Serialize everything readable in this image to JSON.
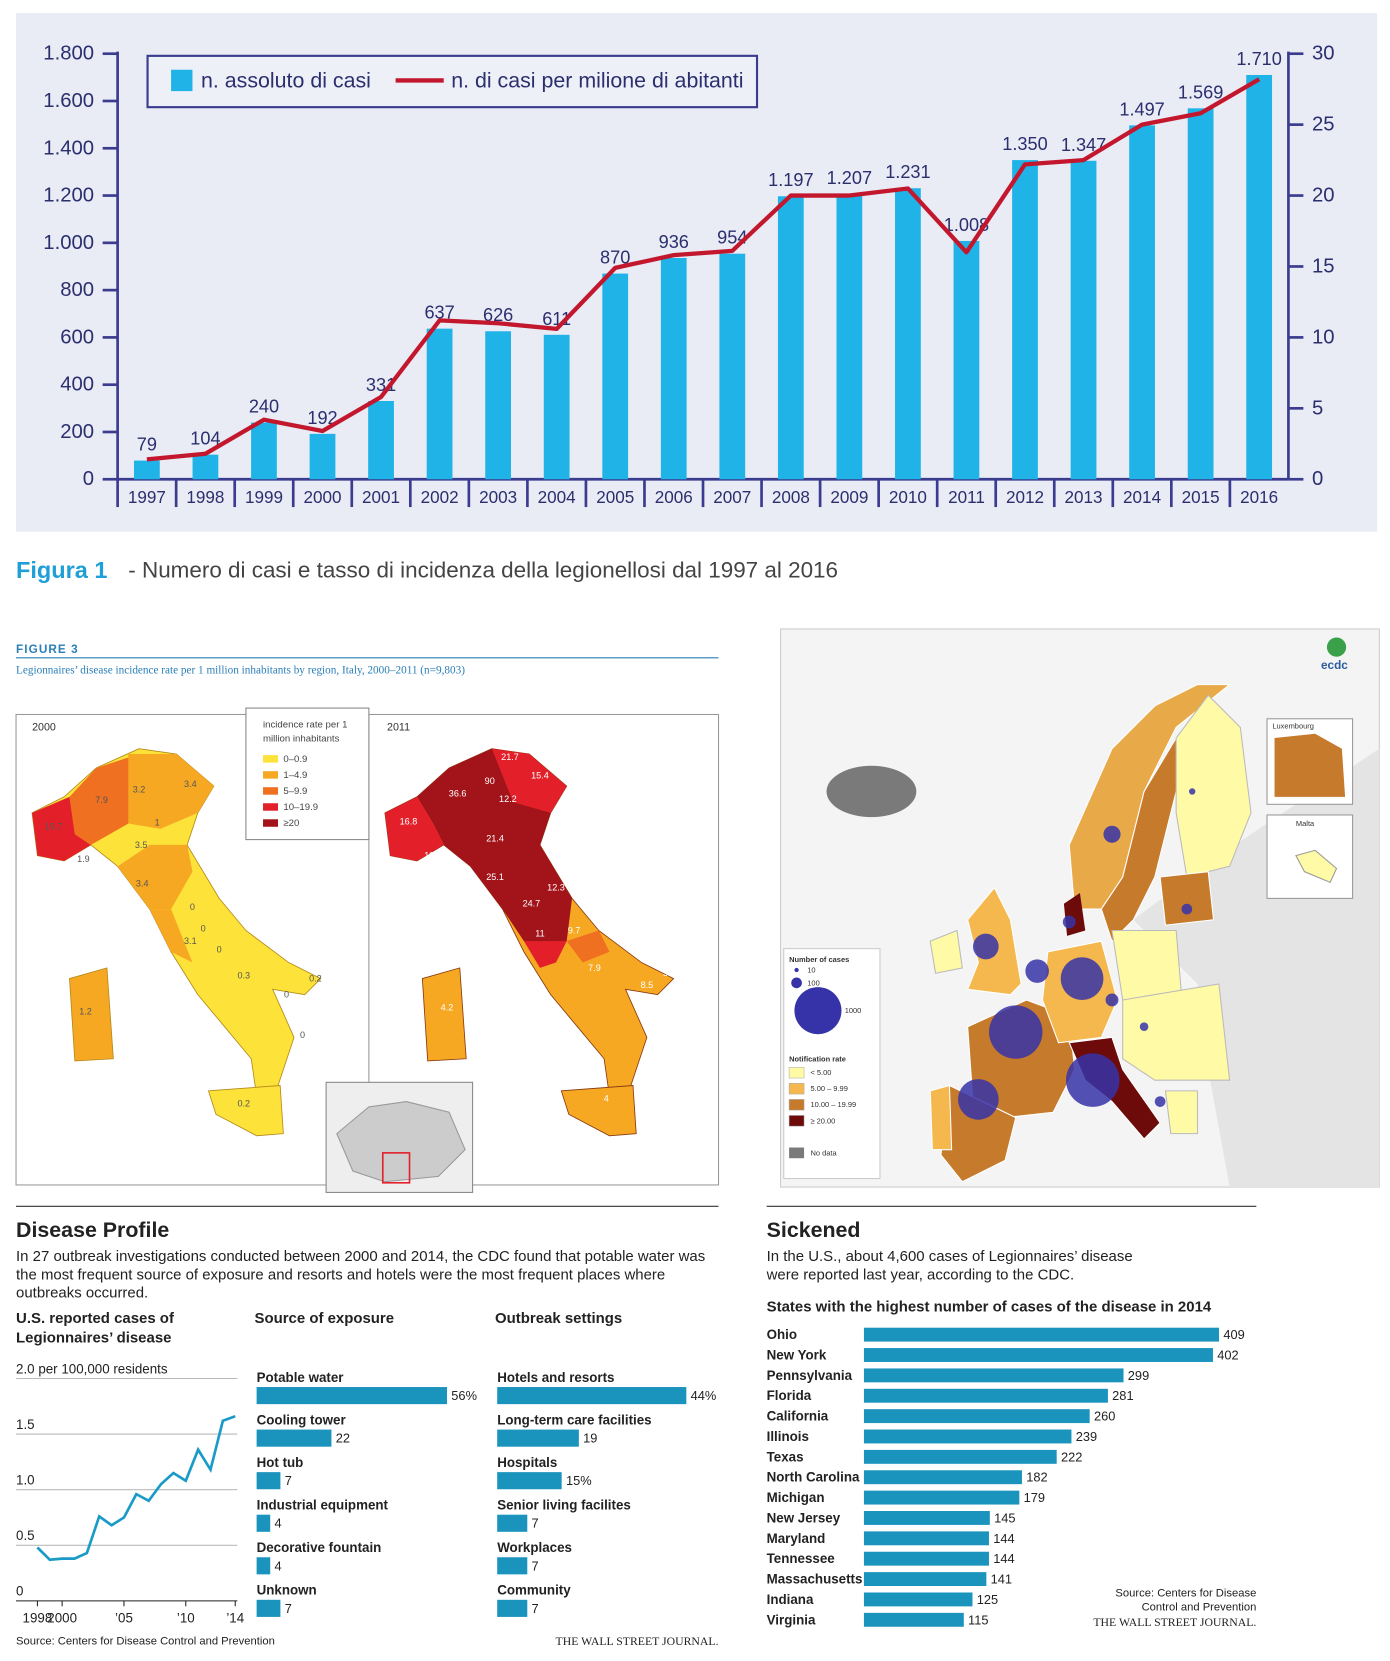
{
  "figure1": {
    "label": "Figura 1",
    "text": "- Numero di casi e tasso di incidenza della legionellosi dal 1997 al 2016"
  },
  "figure3": {
    "label": "FIGURE 3",
    "subtitle": "Legionnaires’ disease incidence rate per 1 million inhabitants by region, Italy, 2000–2011 (n=9,803)",
    "legend": {
      "title": [
        "incidence rate per 1",
        "million inhabitants"
      ],
      "items": [
        {
          "label": "0–0.9",
          "color": "#fde23a"
        },
        {
          "label": "1–4.9",
          "color": "#f7a823"
        },
        {
          "label": "5–9.9",
          "color": "#ee7020"
        },
        {
          "label": "10–19.9",
          "color": "#e3202a"
        },
        {
          "label": "≥20",
          "color": "#a3141a"
        }
      ]
    },
    "maps": [
      {
        "year": "2000",
        "labels": [
          "10.7",
          "7.9",
          "3.2",
          "3.4",
          "1",
          "1.9",
          "3.5",
          "3.4",
          "0",
          "0",
          "3.1",
          "0",
          "0.3",
          "0.2",
          "0",
          "0",
          "0.2",
          "1.2"
        ]
      },
      {
        "year": "2011",
        "labels": [
          "21.7",
          "15.4",
          "23.4",
          "36.6",
          "90",
          "12.2",
          "16.8",
          "13.6",
          "21.4",
          "25.1",
          "12.3",
          "24.7",
          "9.7",
          "11",
          "7.9",
          "8.5",
          "3.9",
          "4.2",
          "3",
          "4"
        ]
      }
    ]
  },
  "ecdc_map": {
    "logo": "ecdc",
    "insets": [
      "Luxembourg",
      "Malta"
    ],
    "legend": {
      "size_title": "Number of cases",
      "sizes": [
        "10",
        "100",
        "1000"
      ],
      "rate_title": "Notification rate",
      "rates": [
        {
          "label": "< 5.00",
          "color": "#fffaa6"
        },
        {
          "label": "5.00 – 9.99",
          "color": "#f4b84e"
        },
        {
          "label": "10.00 – 19.99",
          "color": "#c67b2c"
        },
        {
          "label": "≥ 20.00",
          "color": "#6d0b0b"
        }
      ],
      "no_data": {
        "label": "No data",
        "color": "#7a7a7a"
      }
    }
  },
  "wsj_left": {
    "title": "Disease Profile",
    "text": [
      "In 27 outbreak investigations conducted between 2000 and 2014, the CDC found that potable water was",
      "the most frequent source of exposure and resorts and hotels were the most frequent places where",
      "outbreaks occurred."
    ],
    "source": "Source: Centers for Disease Control and Prevention",
    "publisher": "THE WALL STREET JOURNAL."
  },
  "wsj_right": {
    "title": "Sickened",
    "text": [
      "In the U.S., about 4,600 cases of Legionnaires’ disease",
      "were reported last year, according to the CDC."
    ],
    "source": [
      "Source: Centers for Disease",
      "Control and Prevention"
    ],
    "publisher": "THE WALL STREET JOURNAL."
  },
  "chart_data": [
    {
      "type": "bar",
      "categories": [
        "1997",
        "1998",
        "1999",
        "2000",
        "2001",
        "2002",
        "2003",
        "2004",
        "2005",
        "2006",
        "2007",
        "2008",
        "2009",
        "2010",
        "2011",
        "2012",
        "2013",
        "2014",
        "2015",
        "2016"
      ],
      "series": [
        {
          "name": "n. assoluto di casi",
          "color": "#1fb3e8",
          "values": [
            79,
            104,
            240,
            192,
            331,
            637,
            626,
            611,
            870,
            936,
            954,
            1197,
            1207,
            1231,
            1008,
            1350,
            1347,
            1497,
            1569,
            1710
          ],
          "value_labels": [
            "79",
            "104",
            "240",
            "192",
            "331",
            "637",
            "626",
            "611",
            "870",
            "936",
            "954",
            "1.197",
            "1.207",
            "1.231",
            "1.008",
            "1.350",
            "1.347",
            "1.497",
            "1.569",
            "1.710"
          ]
        },
        {
          "name": "n. di casi per milione di abitanti",
          "color": "#c3172e",
          "type": "line",
          "axis": "y2",
          "values": [
            1.4,
            1.8,
            4.2,
            3.4,
            5.8,
            11.2,
            11.0,
            10.6,
            14.9,
            15.8,
            16.1,
            20.0,
            20.0,
            20.5,
            16.0,
            22.2,
            22.5,
            25.0,
            25.8,
            28.2
          ]
        }
      ],
      "ylim": [
        0,
        1800
      ],
      "yticks": [
        0,
        200,
        400,
        600,
        800,
        {
          "value": 1000,
          "label": "1.000"
        },
        {
          "value": 1200,
          "label": "1.200"
        },
        {
          "value": 1400,
          "label": "1.400"
        },
        {
          "value": 1600,
          "label": "1.600"
        },
        {
          "value": 1800,
          "label": "1.800"
        }
      ],
      "y2lim": [
        0,
        30
      ],
      "y2ticks": [
        0,
        5,
        10,
        15,
        20,
        25,
        30
      ]
    },
    {
      "type": "line",
      "title": [
        "U.S. reported cases of",
        "Legionnaires’ disease"
      ],
      "color": "#1a9ac6",
      "grid": true,
      "x": [
        1998,
        1999,
        2000,
        2001,
        2002,
        2003,
        2004,
        2005,
        2006,
        2007,
        2008,
        2009,
        2010,
        2011,
        2012,
        2013,
        2014
      ],
      "values": [
        0.48,
        0.37,
        0.38,
        0.38,
        0.43,
        0.76,
        0.68,
        0.75,
        0.96,
        0.9,
        1.05,
        1.15,
        1.08,
        1.36,
        1.18,
        1.62,
        1.66
      ],
      "xlim": [
        1998,
        2014
      ],
      "xticks": [
        1998,
        2000,
        {
          "value": 2005,
          "label": "’05"
        },
        {
          "value": 2010,
          "label": "’10"
        },
        {
          "value": 2014,
          "label": "’14"
        }
      ],
      "ylim": [
        0,
        2
      ],
      "yticks": [
        0,
        0.5,
        {
          "value": 1,
          "label": "1.0"
        },
        1.5,
        {
          "value": 2,
          "label": "2.0 per 100,000 residents"
        }
      ]
    },
    {
      "type": "hbar",
      "title": "Source of exposure",
      "color": "#1a93bd",
      "categories": [
        "Potable water",
        "Cooling tower",
        "Hot tub",
        "Industrial equipment",
        "Decorative fountain",
        "Unknown"
      ],
      "values": [
        56,
        22,
        7,
        4,
        4,
        7
      ],
      "value_labels": [
        "56%",
        "22",
        "7",
        "4",
        "4",
        "7"
      ]
    },
    {
      "type": "hbar",
      "title": "Outbreak settings",
      "color": "#1a93bd",
      "categories": [
        "Hotels and resorts",
        "Long-term care facilities",
        "Hospitals",
        "Senior living facilites",
        "Workplaces",
        "Community"
      ],
      "values": [
        44,
        19,
        15,
        7,
        7,
        7
      ],
      "value_labels": [
        "44%",
        "19",
        "15%",
        "7",
        "7",
        "7"
      ]
    },
    {
      "type": "hbar",
      "title": "States with the highest number of cases of the disease in 2014",
      "color": "#1a93bd",
      "categories": [
        "Ohio",
        "New York",
        "Pennsylvania",
        "Florida",
        "California",
        "Illinois",
        "Texas",
        "North Carolina",
        "Michigan",
        "New Jersey",
        "Maryland",
        "Tennessee",
        "Massachusetts",
        "Indiana",
        "Virginia"
      ],
      "values": [
        409,
        402,
        299,
        281,
        260,
        239,
        222,
        182,
        179,
        145,
        144,
        144,
        141,
        125,
        115
      ]
    }
  ]
}
